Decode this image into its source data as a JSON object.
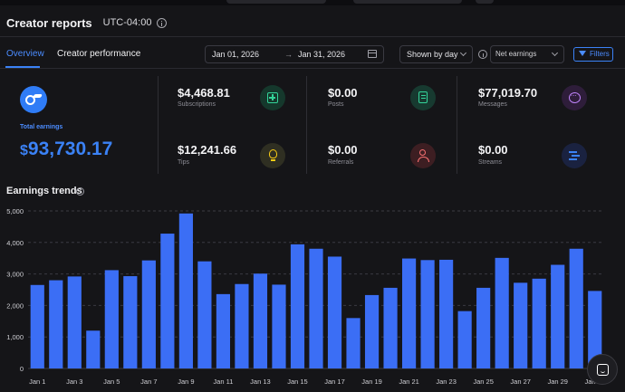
{
  "header": {
    "title": "Creator reports",
    "timezone": "UTC-04:00"
  },
  "tabs": [
    {
      "label": "Overview",
      "active": true
    },
    {
      "label": "Creator performance",
      "active": false
    }
  ],
  "date_range": {
    "start": "Jan 01, 2026",
    "separator": "→",
    "end": "Jan 31, 2026"
  },
  "group_select": {
    "value": "Shown by day"
  },
  "metric_select": {
    "value": "Net earnings"
  },
  "filters_label": "Filters",
  "total": {
    "label": "Total earnings",
    "currency": "$",
    "value": "93,730.17"
  },
  "stats": [
    {
      "label": "Subscriptions",
      "value": "$4,468.81",
      "icon": "plus-square-icon"
    },
    {
      "label": "Tips",
      "value": "$12,241.66",
      "icon": "lightbulb-icon"
    },
    {
      "label": "Posts",
      "value": "$0.00",
      "icon": "document-icon"
    },
    {
      "label": "Referrals",
      "value": "$0.00",
      "icon": "user-referral-icon"
    },
    {
      "label": "Messages",
      "value": "$77,019.70",
      "icon": "chat-bubble-icon"
    },
    {
      "label": "Streams",
      "value": "$0.00",
      "icon": "stream-bars-icon"
    }
  ],
  "colors": {
    "accent": "#3b82f6",
    "bar": "#3b6ef5",
    "background": "#151518"
  },
  "chart_data": {
    "type": "bar",
    "title": "Earnings trends",
    "x": [
      "Jan 1",
      "Jan 2",
      "Jan 3",
      "Jan 4",
      "Jan 5",
      "Jan 6",
      "Jan 7",
      "Jan 8",
      "Jan 9",
      "Jan 10",
      "Jan 11",
      "Jan 12",
      "Jan 13",
      "Jan 14",
      "Jan 15",
      "Jan 16",
      "Jan 17",
      "Jan 18",
      "Jan 19",
      "Jan 20",
      "Jan 21",
      "Jan 22",
      "Jan 23",
      "Jan 24",
      "Jan 25",
      "Jan 26",
      "Jan 27",
      "Jan 28",
      "Jan 29",
      "Jan 30",
      "Jan 31"
    ],
    "x_tick_labels": [
      "Jan 1",
      "Jan 3",
      "Jan 5",
      "Jan 7",
      "Jan 9",
      "Jan 11",
      "Jan 13",
      "Jan 15",
      "Jan 17",
      "Jan 19",
      "Jan 21",
      "Jan 23",
      "Jan 25",
      "Jan 27",
      "Jan 29",
      "Jan 31"
    ],
    "values": [
      2650,
      2800,
      2920,
      1200,
      3120,
      2930,
      3430,
      4280,
      4920,
      3400,
      2360,
      2680,
      3010,
      2660,
      3940,
      3800,
      3550,
      1600,
      2330,
      2560,
      3490,
      3440,
      3450,
      1820,
      2560,
      3510,
      2720,
      2850,
      3290,
      3800,
      2460
    ],
    "y_ticks": [
      "0",
      "1,000",
      "2,000",
      "3,000",
      "4,000",
      "5,000"
    ],
    "ylim": [
      0,
      5000
    ],
    "grid": true,
    "xlabel": "",
    "ylabel": ""
  }
}
